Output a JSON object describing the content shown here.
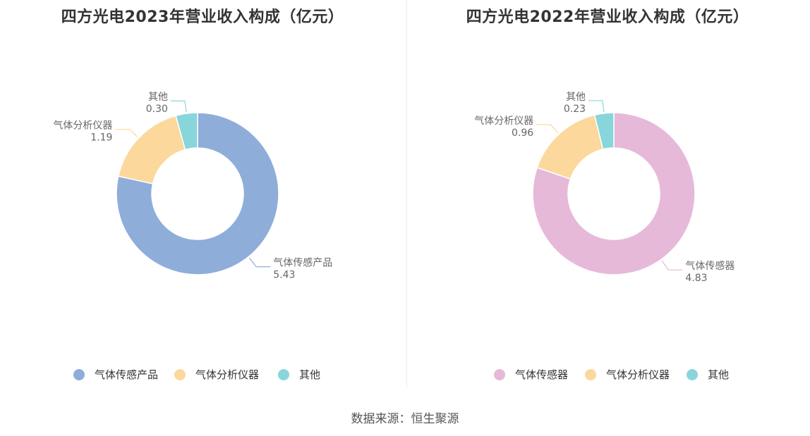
{
  "source_text": "数据来源：恒生聚源",
  "chart_data": [
    {
      "type": "pie",
      "title": "四方光电2023年营业收入构成（亿元）",
      "categories": [
        "气体传感产品",
        "气体分析仪器",
        "其他"
      ],
      "values": [
        5.43,
        1.19,
        0.3
      ],
      "value_labels": [
        "5.43",
        "1.19",
        "0.30"
      ],
      "colors": [
        "#8eadd9",
        "#fcd89c",
        "#89d5dc"
      ],
      "legend_position": "bottom",
      "donut": true
    },
    {
      "type": "pie",
      "title": "四方光电2022年营业收入构成（亿元）",
      "categories": [
        "气体传感器",
        "气体分析仪器",
        "其他"
      ],
      "values": [
        4.83,
        0.96,
        0.23
      ],
      "value_labels": [
        "4.83",
        "0.96",
        "0.23"
      ],
      "colors": [
        "#e6b9d9",
        "#fcd89c",
        "#89d5dc"
      ],
      "legend_position": "bottom",
      "donut": true
    }
  ]
}
